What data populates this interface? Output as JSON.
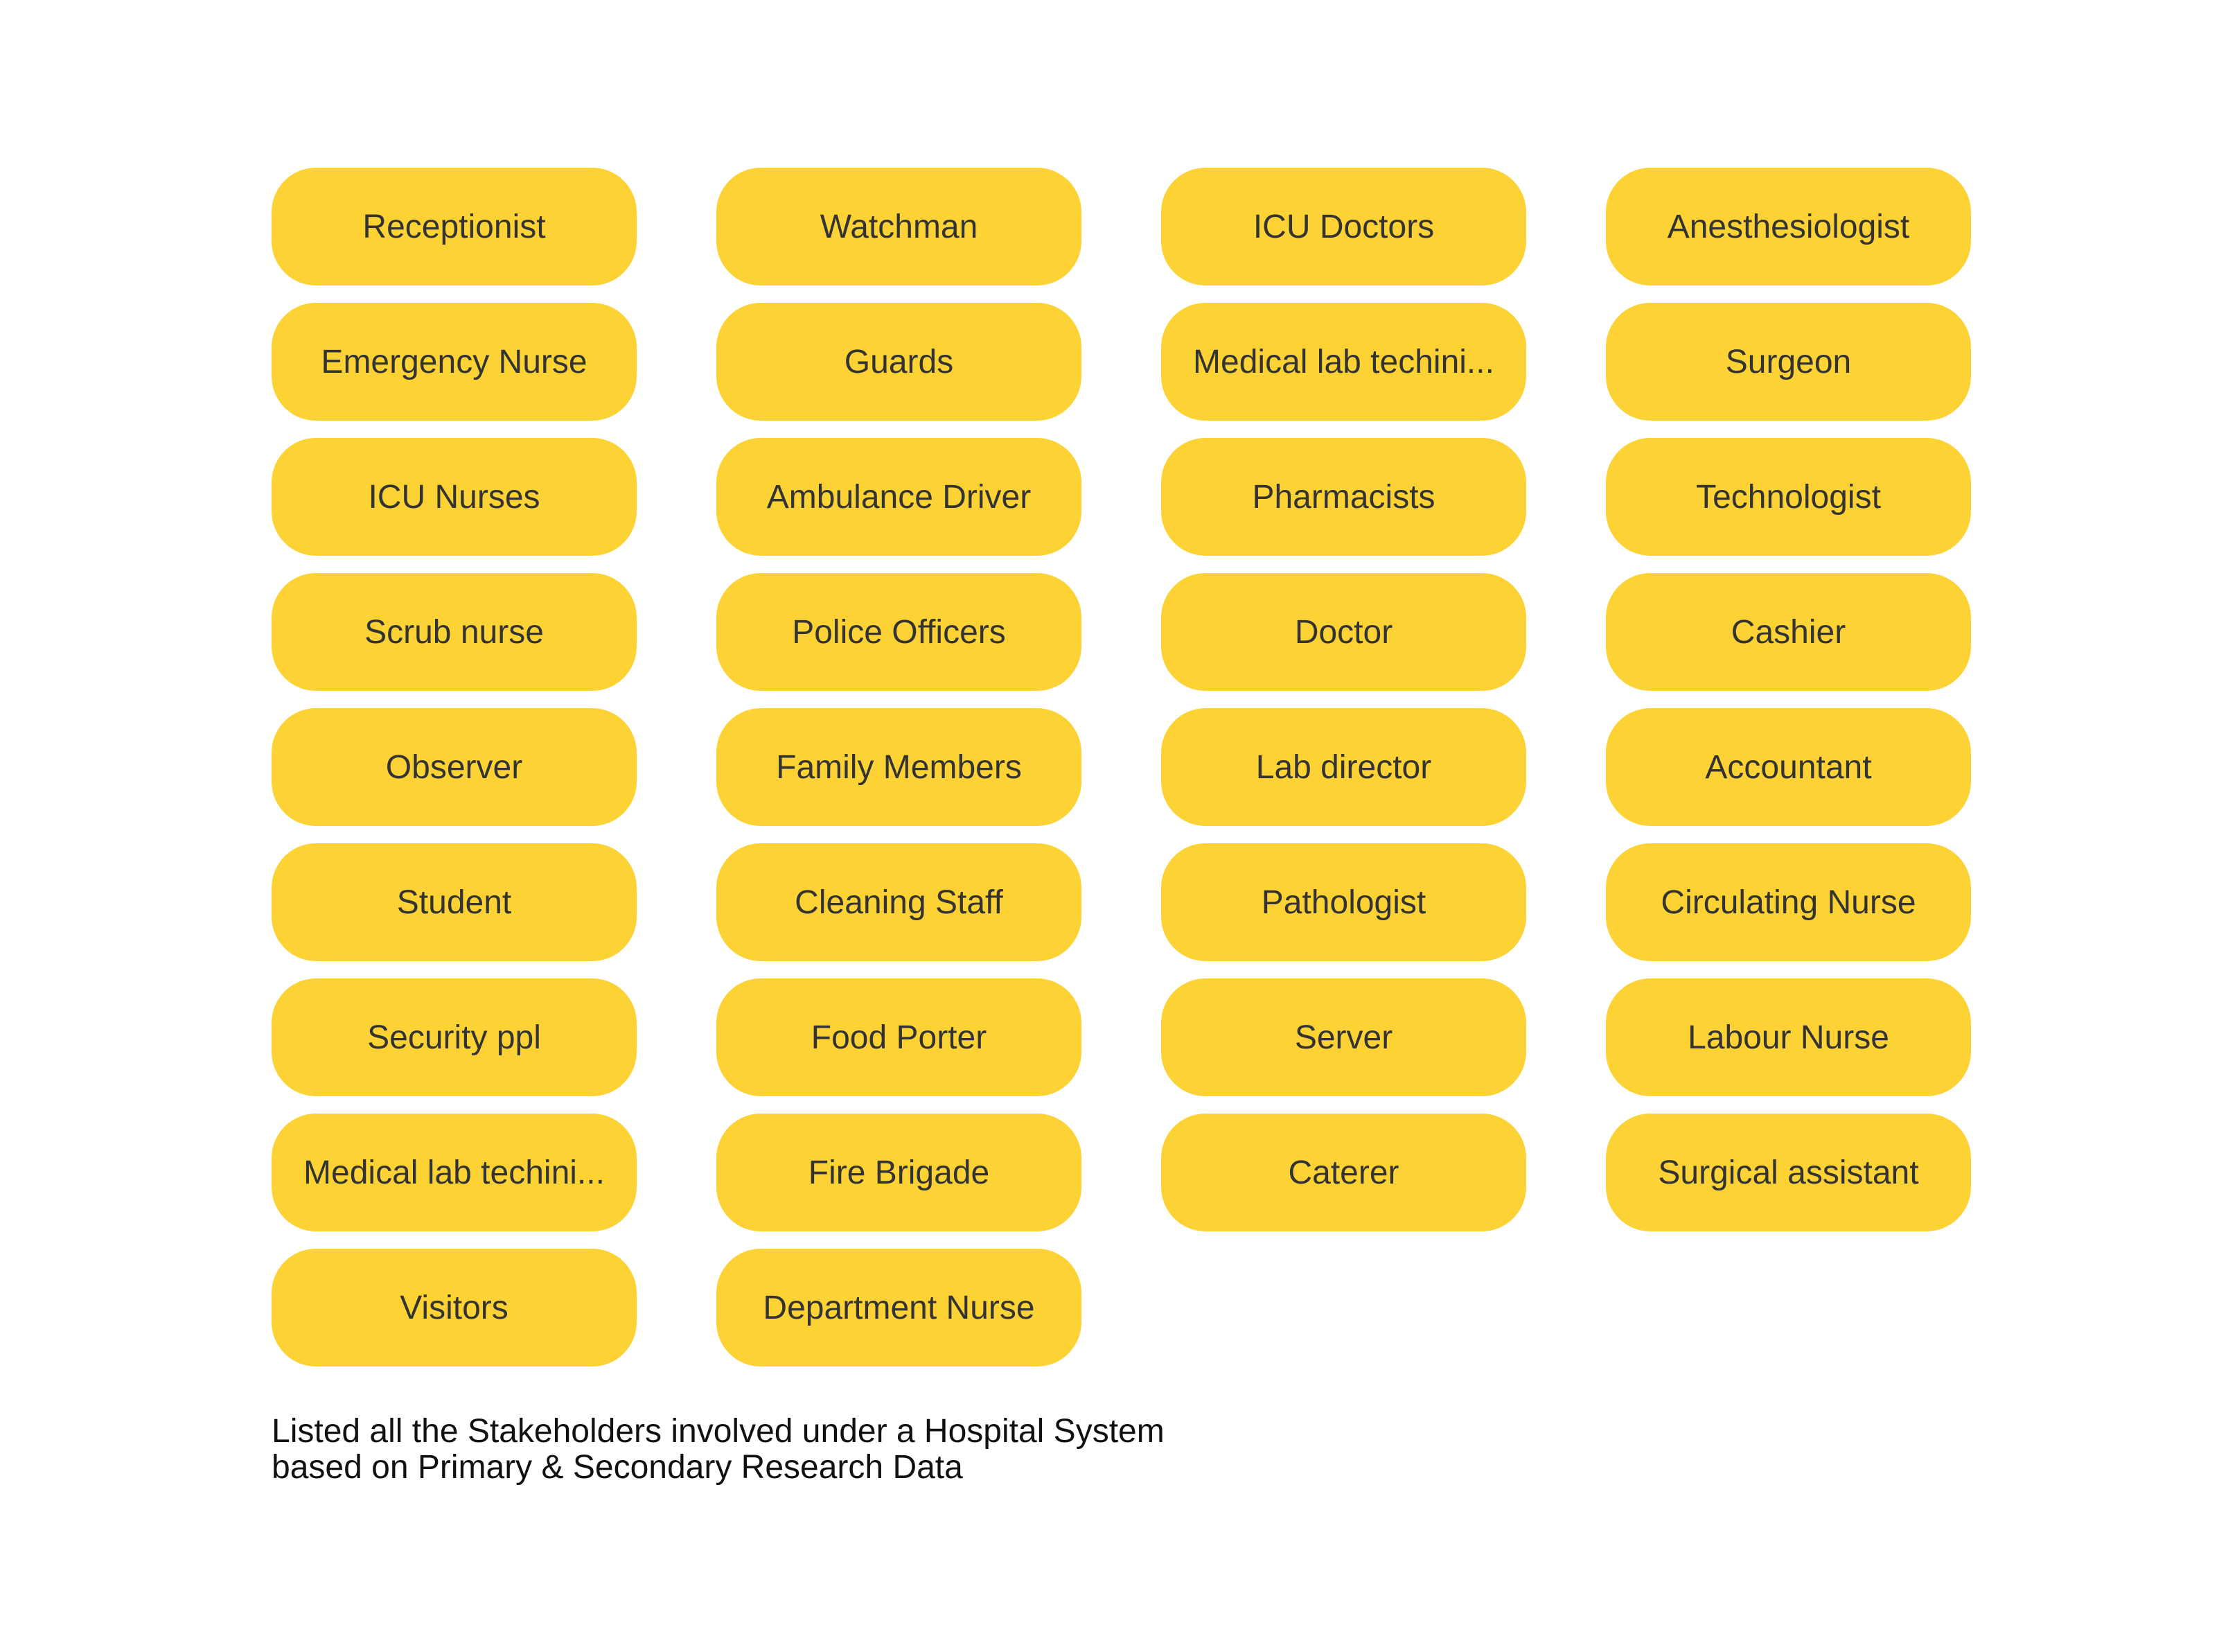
{
  "colors": {
    "pill_fill": "#FDD235",
    "pill_text": "#333333",
    "caption_text": "#111111",
    "background": "#FFFFFF"
  },
  "columns": [
    {
      "items": [
        "Receptionist",
        "Emergency Nurse",
        "ICU Nurses",
        "Scrub nurse",
        "Observer",
        "Student",
        "Security ppl",
        "Medical lab techini...",
        "Visitors"
      ]
    },
    {
      "items": [
        "Watchman",
        "Guards",
        "Ambulance Driver",
        "Police Officers",
        "Family Members",
        "Cleaning Staff",
        "Food Porter",
        "Fire Brigade",
        "Department Nurse"
      ]
    },
    {
      "items": [
        "ICU Doctors",
        "Medical lab techini...",
        "Pharmacists",
        "Doctor",
        "Lab director",
        "Pathologist",
        "Server",
        "Caterer"
      ]
    },
    {
      "items": [
        "Anesthesiologist",
        "Surgeon",
        "Technologist",
        "Cashier",
        "Accountant",
        "Circulating Nurse",
        "Labour Nurse",
        "Surgical assistant"
      ]
    }
  ],
  "caption": {
    "line1": "Listed all the Stakeholders involved under a Hospital System",
    "line2": "based on Primary & Secondary Research Data"
  }
}
